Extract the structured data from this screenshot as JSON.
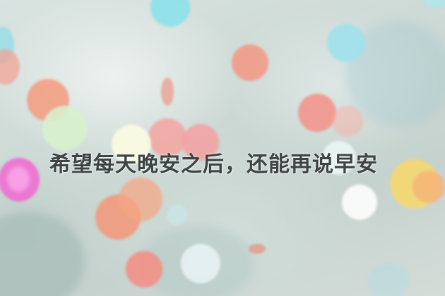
{
  "caption": {
    "text": "希望每天晚安之后，还能再说早安"
  },
  "background": {
    "description_colors": [
      "#ccd7d3",
      "#f3a08f",
      "#ee7fd2",
      "#9fe2e6",
      "#f7d86a"
    ]
  }
}
